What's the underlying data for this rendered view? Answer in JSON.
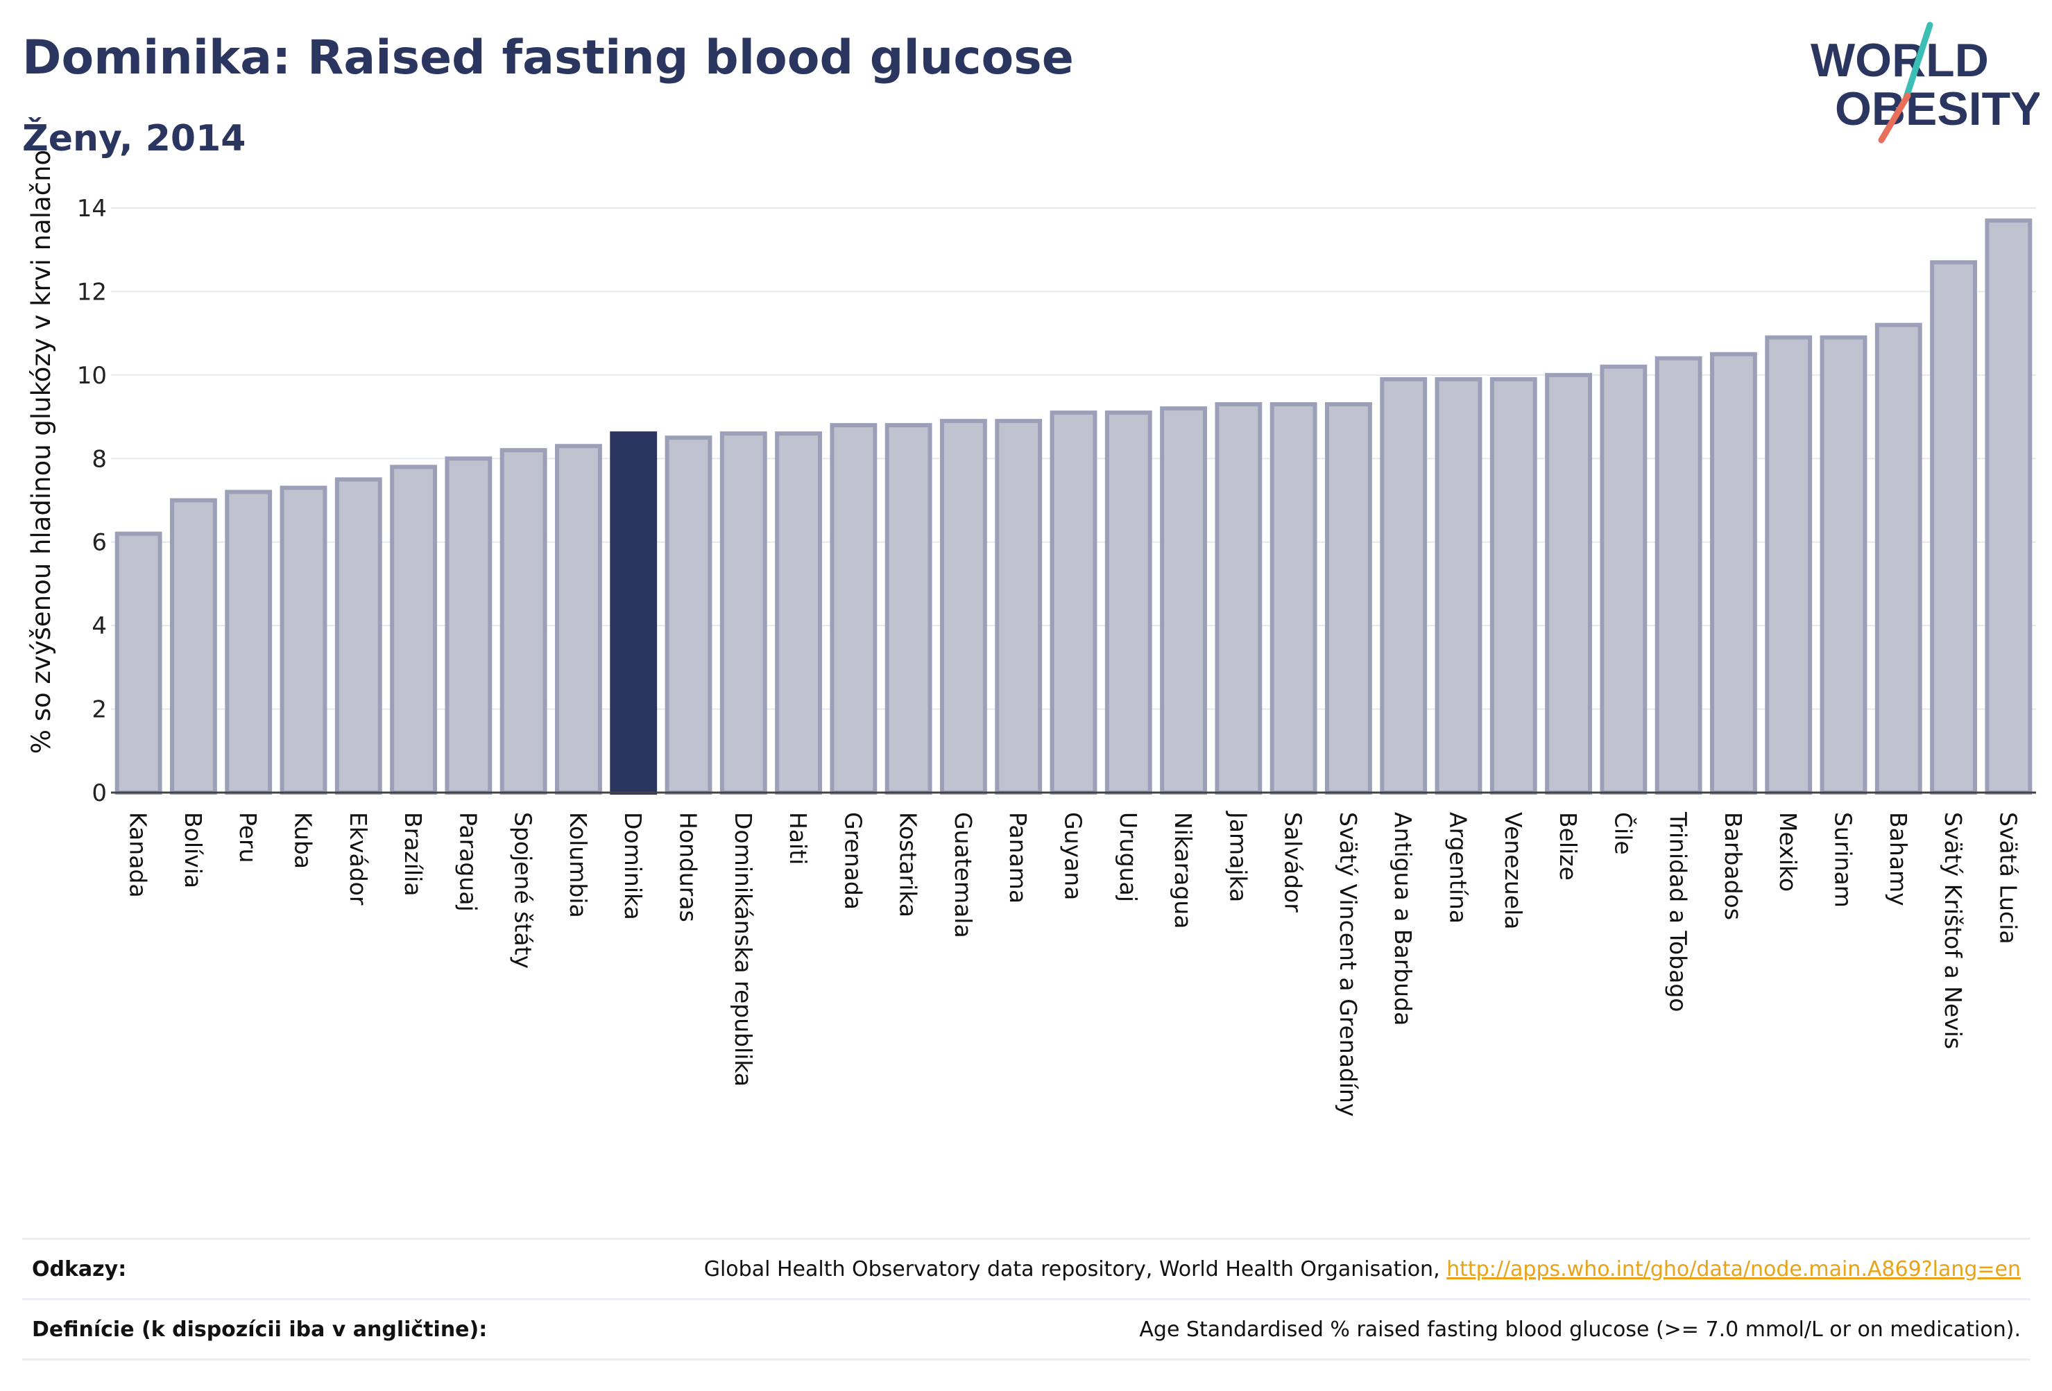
{
  "header": {
    "title": "Dominika: Raised fasting blood glucose",
    "subtitle": "Ženy, 2014"
  },
  "logo": {
    "line1": "WORLD",
    "line2": "OBESITY"
  },
  "chart_data": {
    "type": "bar",
    "ylabel": "% so zvýšenou hladinou glukózy v krvi nalačno",
    "xlabel": "",
    "ylim": [
      0,
      14
    ],
    "yticks": [
      0,
      2,
      4,
      6,
      8,
      10,
      12,
      14
    ],
    "grid": true,
    "highlight": "Dominika",
    "colors": {
      "bar": "#bfc2cf",
      "bar_edge": "#9ba0b8",
      "highlight": "#2a3560"
    },
    "categories": [
      "Kanada",
      "Bolívia",
      "Peru",
      "Kuba",
      "Ekvádor",
      "Brazília",
      "Paraguaj",
      "Spojené štáty",
      "Kolumbia",
      "Dominika",
      "Honduras",
      "Dominikánska republika",
      "Haiti",
      "Grenada",
      "Kostarika",
      "Guatemala",
      "Panama",
      "Guyana",
      "Uruguaj",
      "Nikaragua",
      "Jamajka",
      "Salvádor",
      "Svätý Vincent a Grenadíny",
      "Antigua a Barbuda",
      "Argentína",
      "Venezuela",
      "Belize",
      "Čile",
      "Trinidad a Tobago",
      "Barbados",
      "Mexiko",
      "Surinam",
      "Bahamy",
      "Svätý Krištof a Nevis",
      "Svätá Lucia"
    ],
    "values": [
      6.2,
      7.0,
      7.2,
      7.3,
      7.5,
      7.8,
      8.0,
      8.2,
      8.3,
      8.6,
      8.5,
      8.6,
      8.6,
      8.8,
      8.8,
      8.9,
      8.9,
      9.1,
      9.1,
      9.2,
      9.3,
      9.3,
      9.3,
      9.9,
      9.9,
      9.9,
      10.0,
      10.2,
      10.4,
      10.5,
      10.9,
      10.9,
      11.2,
      12.7,
      13.7
    ]
  },
  "footer": {
    "refs_label": "Odkazy:",
    "refs_text": "Global Health Observatory data repository, World Health Organisation, ",
    "refs_link": "http://apps.who.int/gho/data/node.main.A869?lang=en",
    "defs_label": "Definície (k dispozícii iba v angličtine):",
    "defs_text": "Age Standardised % raised fasting blood glucose (>= 7.0 mmol/L or on medication)."
  }
}
